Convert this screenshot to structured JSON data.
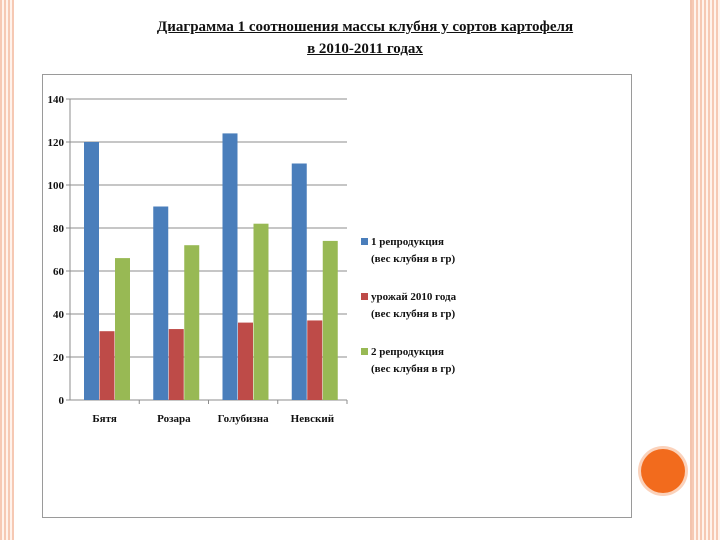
{
  "slide": {
    "title_line1": "Диаграмма 1 соотношения  массы клубня  у сортов картофеля",
    "title_line2": "в 2010-2011 годах"
  },
  "colors": {
    "frame": "#f6c9b4",
    "accent_circle": "#f26b1d"
  },
  "chart_data": {
    "type": "bar",
    "categories": [
      "Бятя",
      "Розара",
      "Голубизна",
      "Невский"
    ],
    "series": [
      {
        "name": "1 репродукция (вес клубня в гр)",
        "legend_line1": "1 репродукция",
        "legend_line2": "(вес клубня в гр)",
        "color": "#4a7ebb",
        "values": [
          120,
          90,
          124,
          110
        ]
      },
      {
        "name": "урожай 2010 года (вес клубня в гр)",
        "legend_line1": "урожай 2010 года",
        "legend_line2": "(вес клубня в гр)",
        "color": "#be4b48",
        "values": [
          32,
          33,
          36,
          37
        ]
      },
      {
        "name": "2 репродукция (вес клубня в гр)",
        "legend_line1": "2 репродукция",
        "legend_line2": "(вес клубня в гр)",
        "color": "#98b954",
        "values": [
          66,
          72,
          82,
          74
        ]
      }
    ],
    "ylim": [
      0,
      140
    ],
    "yticks": [
      0,
      20,
      40,
      60,
      80,
      100,
      120,
      140
    ],
    "grid": true,
    "legend_position": "right"
  }
}
